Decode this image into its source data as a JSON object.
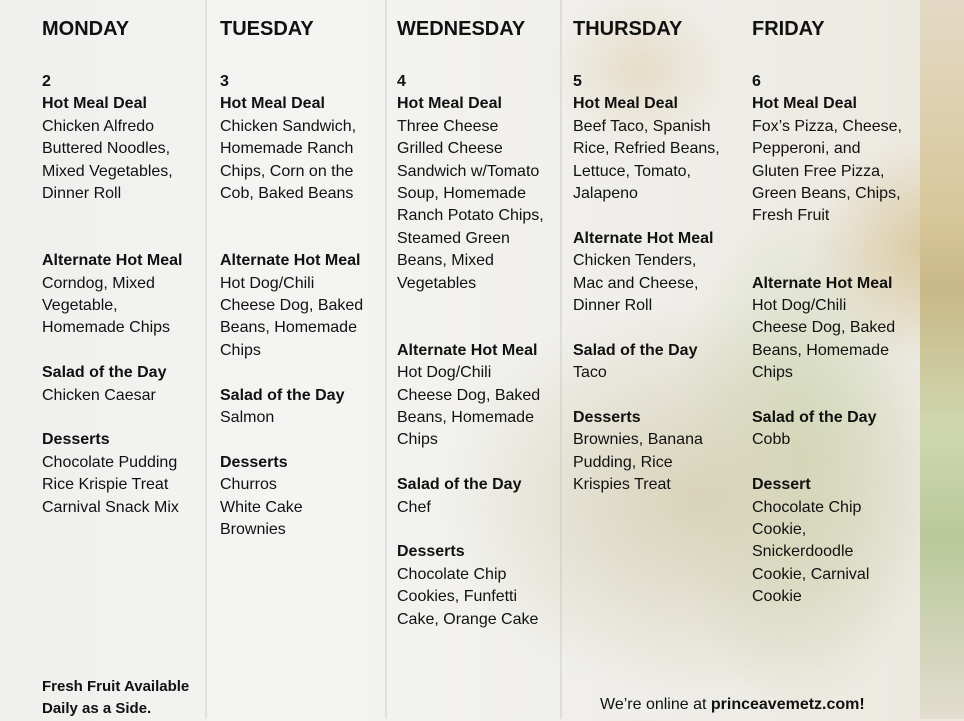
{
  "columns": [
    {
      "day": "MONDAY",
      "date": "2",
      "sections": [
        {
          "heading": "Hot Meal Deal",
          "lines": [
            "Chicken Alfredo",
            "Buttered Noodles,",
            "Mixed Vegetables,",
            "Dinner Roll"
          ]
        },
        {
          "heading": "Alternate Hot Meal",
          "lines": [
            "Corndog, Mixed",
            "Vegetable,",
            "Homemade Chips"
          ]
        },
        {
          "heading": "Salad of the Day",
          "lines": [
            "Chicken Caesar"
          ]
        },
        {
          "heading": "Desserts",
          "lines": [
            "Chocolate Pudding",
            "Rice Krispie Treat",
            "Carnival Snack Mix"
          ]
        }
      ]
    },
    {
      "day": "TUESDAY",
      "date": "3",
      "sections": [
        {
          "heading": "Hot Meal Deal",
          "lines": [
            "Chicken Sandwich,",
            "Homemade Ranch",
            "Chips, Corn on the",
            "Cob, Baked Beans"
          ]
        },
        {
          "heading": "Alternate Hot Meal",
          "lines": [
            "Hot Dog/Chili",
            "Cheese Dog, Baked",
            "Beans, Homemade",
            "Chips"
          ]
        },
        {
          "heading": "Salad of the Day",
          "lines": [
            "Salmon"
          ]
        },
        {
          "heading": "Desserts",
          "lines": [
            "Churros",
            "White Cake",
            "Brownies"
          ]
        }
      ]
    },
    {
      "day": "WEDNESDAY",
      "date": "4",
      "sections": [
        {
          "heading": "Hot Meal Deal",
          "lines": [
            "Three Cheese",
            "Grilled Cheese",
            "Sandwich w/Tomato",
            "Soup, Homemade",
            "Ranch Potato Chips,",
            "Steamed Green",
            "Beans, Mixed",
            "Vegetables"
          ]
        },
        {
          "heading": "Alternate Hot Meal",
          "lines": [
            "Hot Dog/Chili",
            "Cheese Dog, Baked",
            "Beans, Homemade",
            "Chips"
          ]
        },
        {
          "heading": "Salad of the Day",
          "lines": [
            "Chef"
          ]
        },
        {
          "heading": "Desserts",
          "lines": [
            "Chocolate Chip",
            "Cookies,  Funfetti",
            "Cake, Orange Cake"
          ]
        }
      ]
    },
    {
      "day": "THURSDAY",
      "date": "5",
      "sections": [
        {
          "heading": "Hot Meal Deal",
          "lines": [
            "Beef Taco, Spanish",
            "Rice, Refried Beans,",
            "Lettuce, Tomato,",
            "Jalapeno"
          ]
        },
        {
          "heading": "Alternate Hot Meal",
          "lines": [
            "Chicken Tenders,",
            "Mac and Cheese,",
            "Dinner Roll"
          ]
        },
        {
          "heading": "Salad of the Day",
          "lines": [
            "Taco"
          ]
        },
        {
          "heading": "Desserts",
          "lines": [
            "Brownies, Banana",
            "Pudding, Rice",
            "Krispies Treat"
          ]
        }
      ]
    },
    {
      "day": "FRIDAY",
      "date": "6",
      "sections": [
        {
          "heading": "Hot Meal Deal",
          "lines": [
            "Fox’s Pizza, Cheese,",
            "Pepperoni, and",
            "Gluten Free Pizza,",
            "Green Beans, Chips,",
            "Fresh Fruit"
          ]
        },
        {
          "heading": "Alternate Hot Meal",
          "lines": [
            "Hot Dog/Chili",
            "Cheese Dog, Baked",
            "Beans, Homemade",
            "Chips"
          ]
        },
        {
          "heading": "Salad of the Day",
          "lines": [
            "Cobb"
          ]
        },
        {
          "heading": "Dessert",
          "lines": [
            "Chocolate Chip",
            "Cookie,",
            "Snickerdoodle",
            "Cookie, Carnival",
            "Cookie"
          ]
        }
      ]
    }
  ],
  "footer": {
    "fruit_note": [
      "Fresh Fruit Available",
      "Daily as a Side."
    ],
    "online_prefix": "We’re online at ",
    "website": "princeavemetz.com!"
  }
}
